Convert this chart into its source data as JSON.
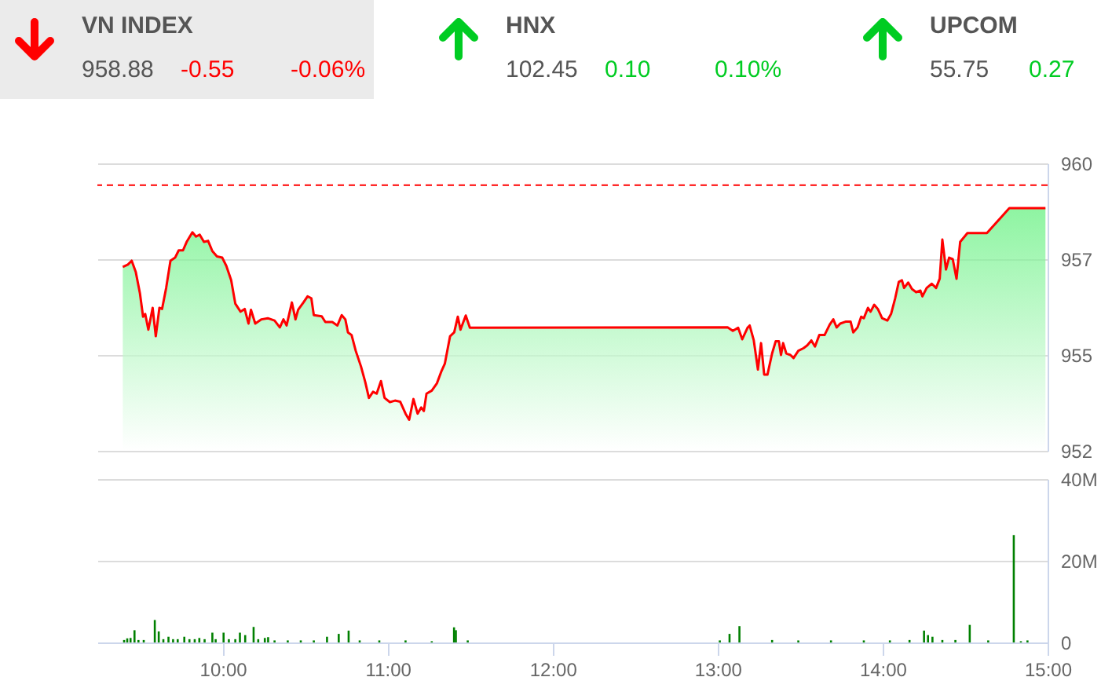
{
  "chart_data": [
    {
      "type": "other",
      "title": "VN INDEX",
      "annotations": [
        "958.88",
        "-0.55",
        "-0.06%"
      ],
      "color": "#ff0000"
    },
    {
      "type": "other",
      "title": "HNX",
      "annotations": [
        "102.45",
        "0.10",
        "0.10%"
      ],
      "color": "#00cc22"
    },
    {
      "type": "other",
      "title": "UPCOM",
      "annotations": [
        "55.75",
        "0.27"
      ],
      "color": "#00cc22"
    },
    {
      "type": "area",
      "color": "#ff0000",
      "x": [
        9.394,
        9.425,
        9.448,
        9.473,
        9.498,
        9.517,
        9.53,
        9.549,
        9.575,
        9.594,
        9.616,
        9.632,
        9.657,
        9.683,
        9.711,
        9.733,
        9.759,
        9.781,
        9.816,
        9.838,
        9.86,
        9.886,
        9.911,
        9.937,
        9.965,
        9.997,
        10.022,
        10.051,
        10.076,
        10.108,
        10.133,
        10.156,
        10.171,
        10.197,
        10.235,
        10.273,
        10.314,
        10.346,
        10.368,
        10.387,
        10.419,
        10.441,
        10.457,
        10.489,
        10.514,
        10.537,
        10.552,
        10.6,
        10.622,
        10.664,
        10.695,
        10.721,
        10.743,
        10.759,
        10.781,
        10.806,
        10.838,
        10.864,
        10.886,
        10.911,
        10.933,
        10.959,
        10.981,
        11.013,
        11.044,
        11.076,
        11.108,
        11.13,
        11.156,
        11.181,
        11.203,
        11.219,
        11.235,
        11.267,
        11.298,
        11.324,
        11.346,
        11.378,
        11.403,
        11.425,
        11.441,
        11.473,
        11.498,
        13.06,
        13.092,
        13.124,
        13.149,
        13.181,
        13.194,
        13.219,
        13.244,
        13.263,
        13.282,
        13.302,
        13.33,
        13.352,
        13.371,
        13.384,
        13.397,
        13.416,
        13.441,
        13.46,
        13.489,
        13.521,
        13.543,
        13.568,
        13.59,
        13.616,
        13.648,
        13.679,
        13.701,
        13.721,
        13.743,
        13.775,
        13.806,
        13.822,
        13.848,
        13.87,
        13.886,
        13.911,
        13.927,
        13.949,
        13.971,
        13.997,
        14.029,
        14.051,
        14.076,
        14.098,
        14.117,
        14.13,
        14.155,
        14.178,
        14.203,
        14.229,
        14.241,
        14.267,
        14.298,
        14.324,
        14.346,
        14.362,
        14.384,
        14.403,
        14.425,
        14.448,
        14.47,
        14.514,
        14.632,
        14.768,
        14.987
      ],
      "values": [
        957.3,
        957.36,
        957.46,
        957.16,
        956.61,
        956.0,
        956.07,
        955.66,
        956.23,
        955.49,
        956.23,
        956.2,
        956.75,
        957.46,
        957.54,
        957.73,
        957.73,
        957.95,
        958.2,
        958.09,
        958.14,
        957.95,
        957.98,
        957.71,
        957.57,
        957.54,
        957.32,
        956.95,
        956.34,
        956.13,
        956.2,
        955.82,
        956.18,
        955.82,
        955.93,
        955.96,
        955.9,
        955.72,
        955.93,
        955.77,
        956.37,
        955.93,
        956.18,
        956.37,
        956.53,
        956.48,
        956.04,
        956.01,
        955.86,
        955.86,
        955.77,
        956.04,
        955.93,
        955.59,
        955.52,
        955.11,
        954.7,
        954.29,
        953.88,
        954.04,
        953.99,
        954.32,
        953.88,
        953.77,
        953.81,
        953.78,
        953.47,
        953.31,
        953.85,
        953.47,
        953.63,
        953.54,
        953.99,
        954.07,
        954.26,
        954.56,
        954.77,
        955.49,
        955.59,
        956.0,
        955.66,
        956.03,
        955.71,
        955.72,
        955.63,
        955.71,
        955.41,
        955.71,
        955.77,
        955.38,
        954.62,
        955.31,
        954.49,
        954.49,
        955.04,
        955.36,
        955.36,
        955.0,
        955.31,
        955.04,
        955.0,
        954.92,
        955.11,
        955.18,
        955.25,
        955.38,
        955.22,
        955.52,
        955.52,
        955.79,
        955.93,
        955.72,
        955.82,
        955.87,
        955.87,
        955.59,
        955.72,
        956.0,
        955.96,
        956.23,
        956.13,
        956.31,
        956.2,
        955.96,
        955.9,
        956.07,
        956.48,
        956.91,
        956.95,
        956.75,
        956.89,
        956.72,
        956.64,
        956.68,
        956.53,
        956.75,
        956.86,
        956.75,
        956.99,
        958.01,
        957.23,
        957.54,
        957.5,
        956.99,
        957.95,
        958.18,
        958.18,
        958.83,
        958.83
      ],
      "xlim": [
        9.24,
        15
      ],
      "ylim": [
        952.5,
        960
      ],
      "yticks": [
        {
          "value": 952.5,
          "label": "952"
        },
        955,
        {
          "value": 957.5,
          "label": "957"
        },
        960
      ],
      "grid": "y",
      "tick_labels": "y",
      "ref_lines": [
        {
          "axis": "y",
          "value": 959.43,
          "color": "#ff0000",
          "line_style": "dashed"
        }
      ]
    },
    {
      "type": "bar",
      "color": "#008000",
      "x": [
        9.402,
        9.421,
        9.441,
        9.465,
        9.489,
        9.521,
        9.588,
        9.612,
        9.64,
        9.671,
        9.699,
        9.727,
        9.767,
        9.798,
        9.83,
        9.858,
        9.89,
        9.937,
        9.957,
        10.005,
        10.037,
        10.076,
        10.104,
        10.136,
        10.187,
        10.215,
        10.255,
        10.275,
        10.314,
        10.394,
        10.473,
        10.552,
        10.632,
        10.703,
        10.763,
        10.83,
        10.949,
        11.108,
        11.267,
        11.402,
        11.413,
        11.485,
        13.013,
        13.072,
        13.132,
        13.33,
        13.489,
        13.687,
        13.886,
        14.044,
        14.163,
        14.251,
        14.275,
        14.302,
        14.362,
        14.441,
        14.528,
        14.64,
        14.795,
        14.838,
        14.878
      ],
      "values": [
        0.6,
        1.0,
        1.1,
        3.0,
        0.6,
        0.6,
        5.5,
        2.7,
        0.8,
        1.4,
        0.8,
        0.8,
        1.4,
        0.8,
        0.8,
        1.1,
        0.8,
        2.4,
        0.8,
        2.4,
        0.8,
        0.8,
        2.4,
        1.8,
        3.8,
        0.8,
        1.1,
        1.3,
        0.5,
        0.5,
        0.5,
        0.5,
        1.4,
        2.1,
        2.9,
        0.5,
        0.5,
        0.5,
        0.3,
        3.7,
        3.0,
        0.5,
        0.5,
        2.1,
        4.0,
        0.6,
        0.5,
        0.5,
        0.5,
        0.5,
        0.6,
        2.9,
        1.8,
        1.4,
        0.6,
        0.6,
        4.3,
        0.5,
        26.3,
        0.3,
        0.5
      ],
      "xlim": [
        9.24,
        15
      ],
      "xticks": [
        {
          "value": 10,
          "label": "10:00"
        },
        {
          "value": 11,
          "label": "11:00"
        },
        {
          "value": 12,
          "label": "12:00"
        },
        {
          "value": 13,
          "label": "13:00"
        },
        {
          "value": 14,
          "label": "14:00"
        },
        {
          "value": 15,
          "label": "15:00"
        }
      ],
      "ylim": [
        0,
        40
      ],
      "yticks": [
        0,
        {
          "value": 20,
          "label": "20M"
        },
        {
          "value": 40,
          "label": "40M"
        }
      ],
      "grid": "y"
    }
  ]
}
